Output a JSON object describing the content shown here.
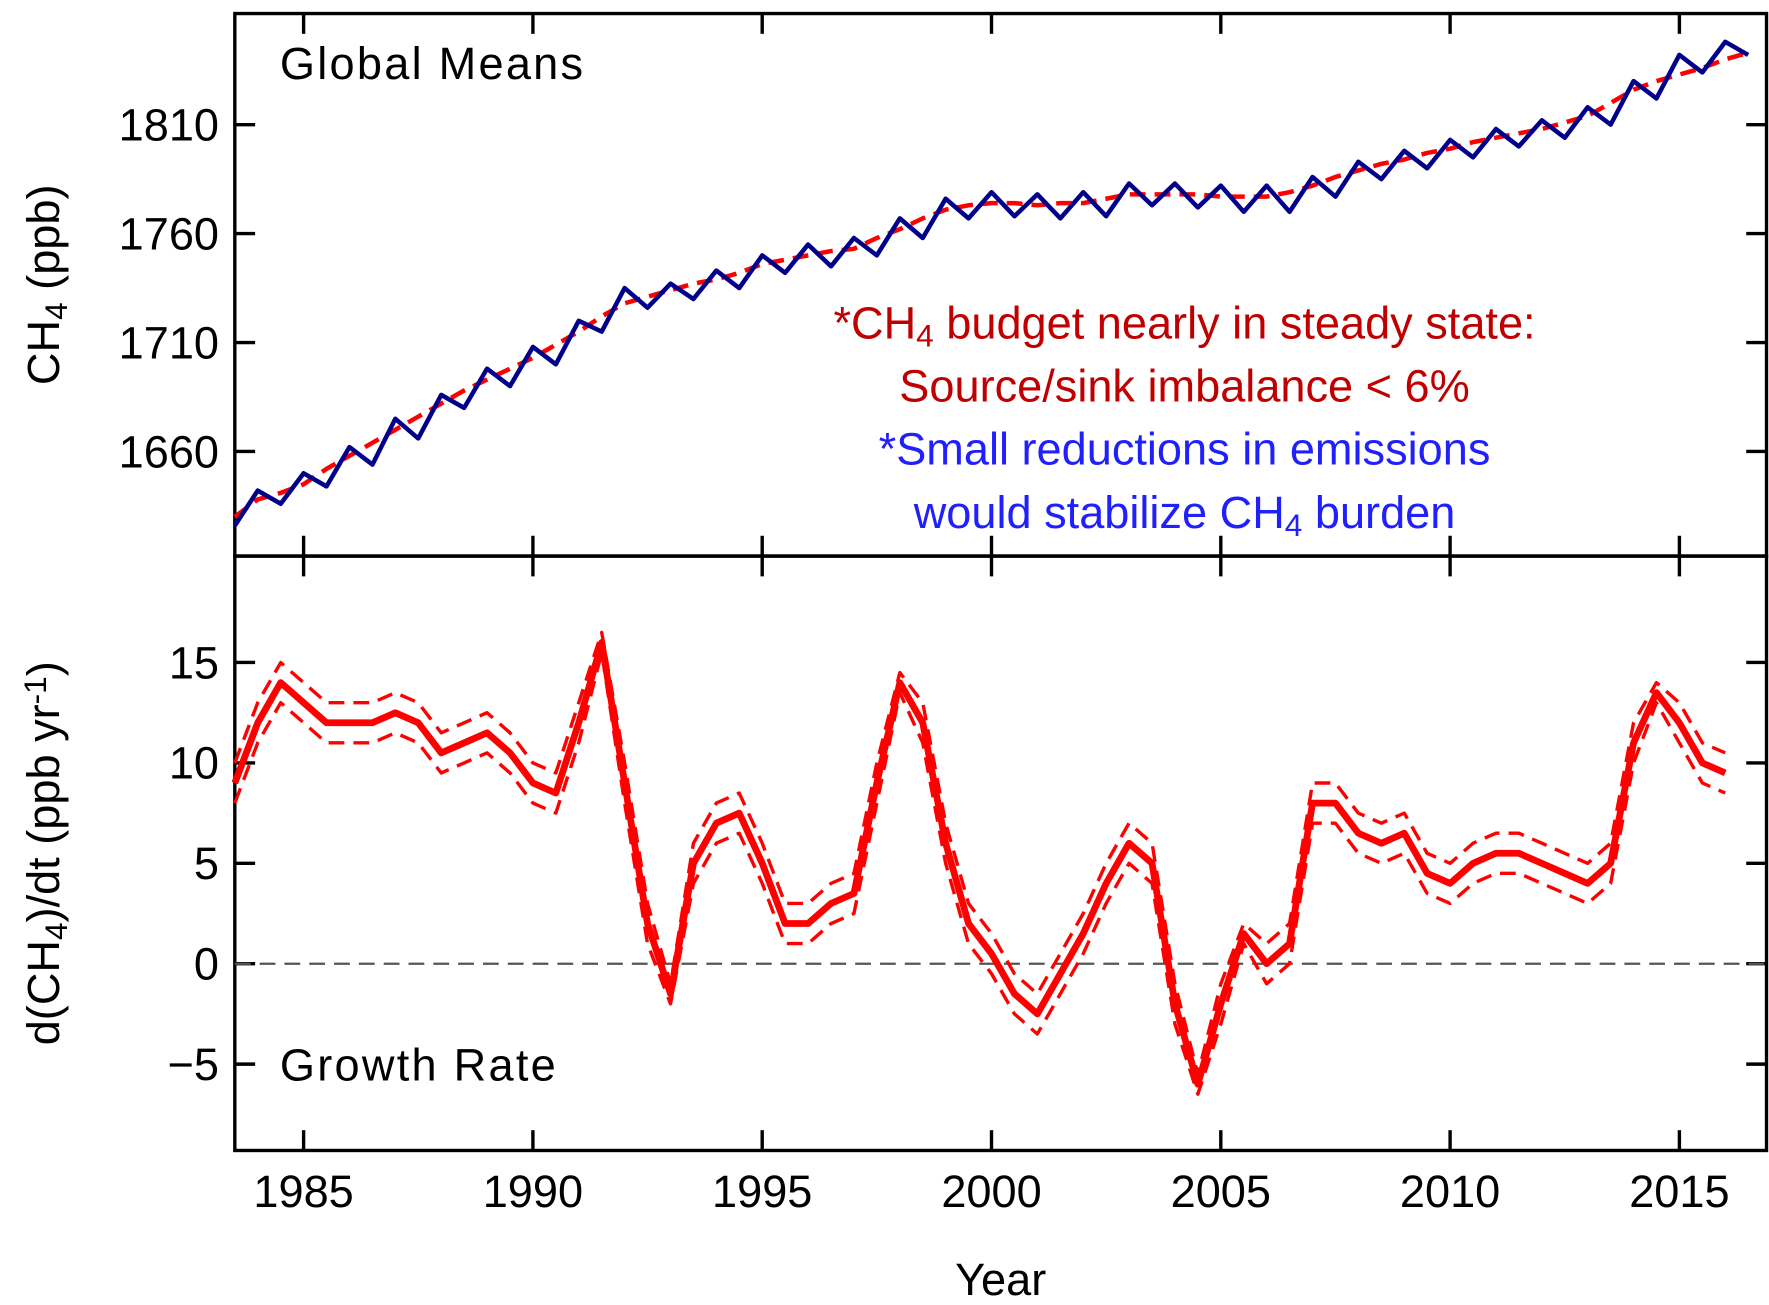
{
  "chart_data": [
    {
      "type": "line",
      "panel_label": "Global Means",
      "ylabel": {
        "parts": [
          {
            "text": "CH"
          },
          {
            "text": "4",
            "shift": "sub"
          },
          {
            "text": " (ppb)"
          }
        ]
      },
      "xlim": [
        1983.5,
        2016.9
      ],
      "xticks": [
        1985,
        1990,
        1995,
        2000,
        2005,
        2010,
        2015
      ],
      "xtick_labels": false,
      "ylim": [
        1612,
        1861
      ],
      "yticks": [
        1660,
        1710,
        1760,
        1810
      ],
      "x": [
        1983.5,
        1984,
        1984.5,
        1985,
        1985.5,
        1986,
        1986.5,
        1987,
        1987.5,
        1988,
        1988.5,
        1989,
        1989.5,
        1990,
        1990.5,
        1991,
        1991.5,
        1992,
        1992.5,
        1993,
        1993.5,
        1994,
        1994.5,
        1995,
        1995.5,
        1996,
        1996.5,
        1997,
        1997.5,
        1998,
        1998.5,
        1999,
        1999.5,
        2000,
        2000.5,
        2001,
        2001.5,
        2002,
        2002.5,
        2003,
        2003.5,
        2004,
        2004.5,
        2005,
        2005.5,
        2006,
        2006.5,
        2007,
        2007.5,
        2008,
        2008.5,
        2009,
        2009.5,
        2010,
        2010.5,
        2011,
        2011.5,
        2012,
        2012.5,
        2013,
        2013.5,
        2014,
        2014.5,
        2015,
        2015.5,
        2016,
        2016.5
      ],
      "series": [
        {
          "color": "#00008b",
          "style": "solid",
          "values": [
            1626,
            1642,
            1636,
            1650,
            1644,
            1662,
            1654,
            1675,
            1666,
            1686,
            1680,
            1698,
            1690,
            1708,
            1700,
            1720,
            1715,
            1735,
            1726,
            1737,
            1730,
            1743,
            1735,
            1750,
            1742,
            1755,
            1745,
            1758,
            1750,
            1767,
            1758,
            1776,
            1767,
            1779,
            1768,
            1778,
            1767,
            1779,
            1768,
            1783,
            1773,
            1783,
            1772,
            1782,
            1770,
            1782,
            1770,
            1786,
            1777,
            1793,
            1785,
            1798,
            1790,
            1803,
            1795,
            1808,
            1800,
            1812,
            1804,
            1818,
            1810,
            1830,
            1822,
            1842,
            1834,
            1848,
            1842
          ]
        },
        {
          "color": "#ff0000",
          "style": "dashed",
          "values": [
            1630,
            1638,
            1641,
            1645,
            1652,
            1658,
            1664,
            1670,
            1676,
            1682,
            1688,
            1693,
            1698,
            1703,
            1709,
            1715,
            1722,
            1728,
            1731,
            1734,
            1737,
            1739,
            1742,
            1746,
            1748,
            1750,
            1752,
            1753,
            1758,
            1762,
            1767,
            1771,
            1773,
            1774,
            1774,
            1773,
            1774,
            1774,
            1776,
            1778,
            1778,
            1778,
            1778,
            1777,
            1777,
            1777,
            1779,
            1782,
            1786,
            1789,
            1792,
            1794,
            1797,
            1799,
            1802,
            1804,
            1806,
            1808,
            1811,
            1814,
            1820,
            1826,
            1830,
            1833,
            1836,
            1840,
            1843
          ]
        }
      ],
      "annotations": [
        {
          "color": "#c00000",
          "parts": [
            {
              "text": "*CH"
            },
            {
              "text": "4",
              "shift": "sub"
            },
            {
              "text": " budget nearly in steady state:"
            }
          ]
        },
        {
          "color": "#c00000",
          "parts": [
            {
              "text": "Source/sink imbalance < 6%"
            }
          ]
        },
        {
          "color": "#2020ff",
          "parts": [
            {
              "text": "*Small reductions in emissions"
            }
          ]
        },
        {
          "color": "#2020ff",
          "parts": [
            {
              "text": "would stabilize CH"
            },
            {
              "text": "4",
              "shift": "sub"
            },
            {
              "text": " burden"
            }
          ]
        }
      ]
    },
    {
      "type": "line",
      "panel_label": "Growth Rate",
      "ylabel": {
        "parts": [
          {
            "text": "d(CH"
          },
          {
            "text": "4",
            "shift": "sub"
          },
          {
            "text": ")/dt (ppb yr"
          },
          {
            "text": "-1",
            "shift": "super"
          },
          {
            "text": ")"
          }
        ]
      },
      "xlabel": "Year",
      "xlim": [
        1983.5,
        2016.9
      ],
      "xticks": [
        1985,
        1990,
        1995,
        2000,
        2005,
        2010,
        2015
      ],
      "xtick_labels": true,
      "ylim": [
        -9.3,
        20.3
      ],
      "yticks": [
        {
          "value": -5,
          "label": "−5"
        },
        0,
        5,
        10,
        15
      ],
      "hline": 0,
      "x": [
        1983.5,
        1984,
        1984.5,
        1985,
        1985.5,
        1986,
        1986.5,
        1987,
        1987.5,
        1988,
        1988.5,
        1989,
        1989.5,
        1990,
        1990.5,
        1991,
        1991.5,
        1992,
        1992.5,
        1993,
        1993.5,
        1994,
        1994.5,
        1995,
        1995.5,
        1996,
        1996.5,
        1997,
        1997.5,
        1998,
        1998.5,
        1999,
        1999.5,
        2000,
        2000.5,
        2001,
        2001.5,
        2002,
        2002.5,
        2003,
        2003.5,
        2004,
        2004.5,
        2005,
        2005.5,
        2006,
        2006.5,
        2007,
        2007.5,
        2008,
        2008.5,
        2009,
        2009.5,
        2010,
        2010.5,
        2011,
        2011.5,
        2012,
        2012.5,
        2013,
        2013.5,
        2014,
        2014.5,
        2015,
        2015.5,
        2016
      ],
      "series": [
        {
          "color": "#ff0000",
          "style": "solid",
          "values": [
            9,
            12,
            14,
            13,
            12,
            12,
            12,
            12.5,
            12,
            10.5,
            11,
            11.5,
            10.5,
            9,
            8.5,
            12,
            16,
            9,
            2,
            -1.5,
            5,
            7,
            7.5,
            5,
            2,
            2,
            3,
            3.5,
            9,
            14,
            12,
            6,
            2,
            0.5,
            -1.5,
            -2.5,
            -0.5,
            1.5,
            4,
            6,
            5,
            -2,
            -6,
            -2,
            1.5,
            0,
            1,
            8,
            8,
            6.5,
            6,
            6.5,
            4.5,
            4,
            5,
            5.5,
            5.5,
            5,
            4.5,
            4,
            5,
            11,
            13.5,
            12,
            10,
            9.5
          ]
        },
        {
          "color": "#ff0000",
          "style": "dashed",
          "values": [
            10,
            13,
            15,
            14,
            13,
            13,
            13,
            13.5,
            13,
            11.5,
            12,
            12.5,
            11.5,
            10,
            9.5,
            13,
            16.5,
            10,
            3,
            -1,
            6,
            8,
            8.5,
            6,
            3,
            3,
            4,
            4.5,
            10,
            14.5,
            13,
            7,
            3,
            1.5,
            -0.5,
            -1.5,
            0.5,
            2.5,
            5,
            7,
            6,
            -1,
            -5.5,
            -1,
            2,
            1,
            2,
            9,
            9,
            7.5,
            7,
            7.5,
            5.5,
            5,
            6,
            6.5,
            6.5,
            6,
            5.5,
            5,
            6,
            12,
            14,
            13,
            11,
            10.5
          ]
        },
        {
          "color": "#ff0000",
          "style": "dashed",
          "values": [
            8,
            11,
            13,
            12,
            11,
            11,
            11,
            11.5,
            11,
            9.5,
            10,
            10.5,
            9.5,
            8,
            7.5,
            11,
            15.5,
            8,
            1,
            -2,
            4,
            6,
            6.5,
            4,
            1,
            1,
            2,
            2.5,
            8,
            13.5,
            11,
            5,
            1,
            -0.5,
            -2.5,
            -3.5,
            -1.5,
            0.5,
            3,
            5,
            4,
            -3,
            -6.5,
            -3,
            1,
            -1,
            0,
            7,
            7,
            5.5,
            5,
            5.5,
            3.5,
            3,
            4,
            4.5,
            4.5,
            4,
            3.5,
            3,
            4,
            10,
            13,
            11,
            9,
            8.5
          ]
        }
      ]
    }
  ]
}
